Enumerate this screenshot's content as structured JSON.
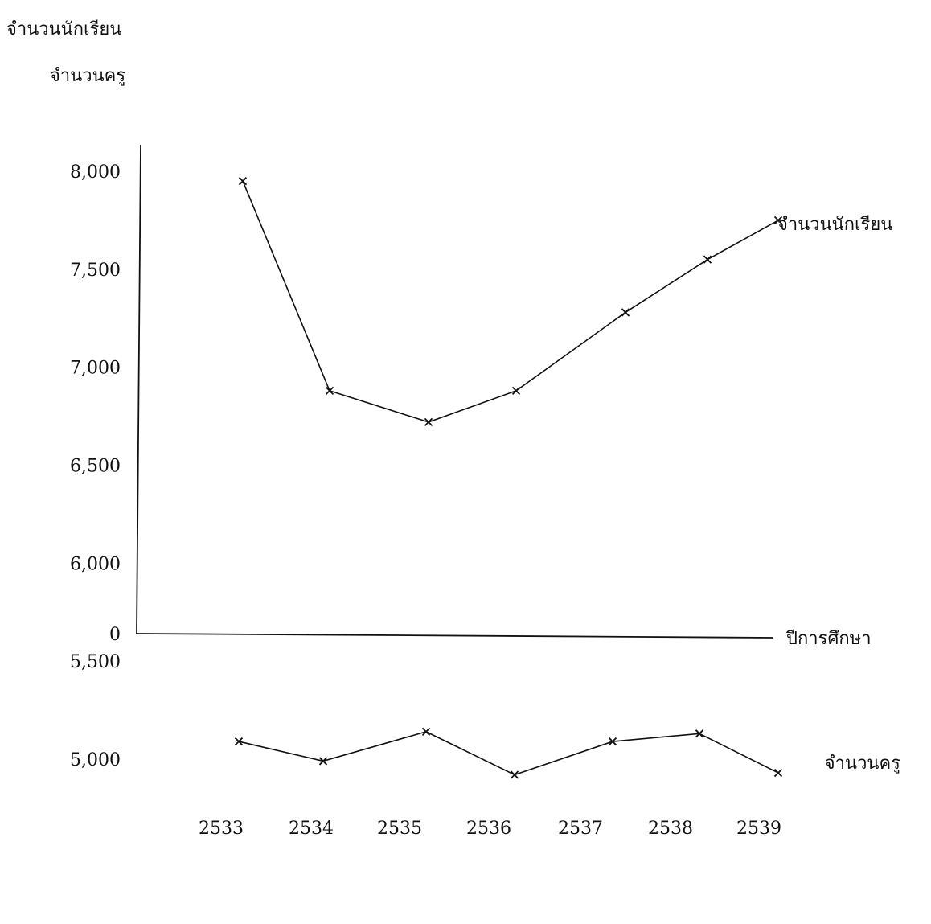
{
  "chart_data": {
    "type": "line",
    "title": "",
    "ylabel_lines": [
      "จำนวนนักเรียน",
      "จำนวนครู"
    ],
    "xlabel": "ปีการศึกษา",
    "categories": [
      "2533",
      "2534",
      "2535",
      "2536",
      "2537",
      "2538",
      "2539"
    ],
    "y_ticks": [
      "0",
      "5,000",
      "5,500",
      "6,000",
      "6,500",
      "7,000",
      "7,500",
      "8,000"
    ],
    "y_axis_broken": true,
    "ylim": [
      4500,
      8000
    ],
    "series": [
      {
        "name": "จำนวนนักเรียน",
        "values": [
          7950,
          6880,
          6720,
          6880,
          7280,
          7550,
          7750
        ]
      },
      {
        "name": "จำนวนครู",
        "values": [
          5090,
          4990,
          5140,
          4920,
          5090,
          5130,
          4930
        ]
      }
    ],
    "grid": false,
    "legend": "series labels at right end of each line",
    "marker": "x"
  }
}
